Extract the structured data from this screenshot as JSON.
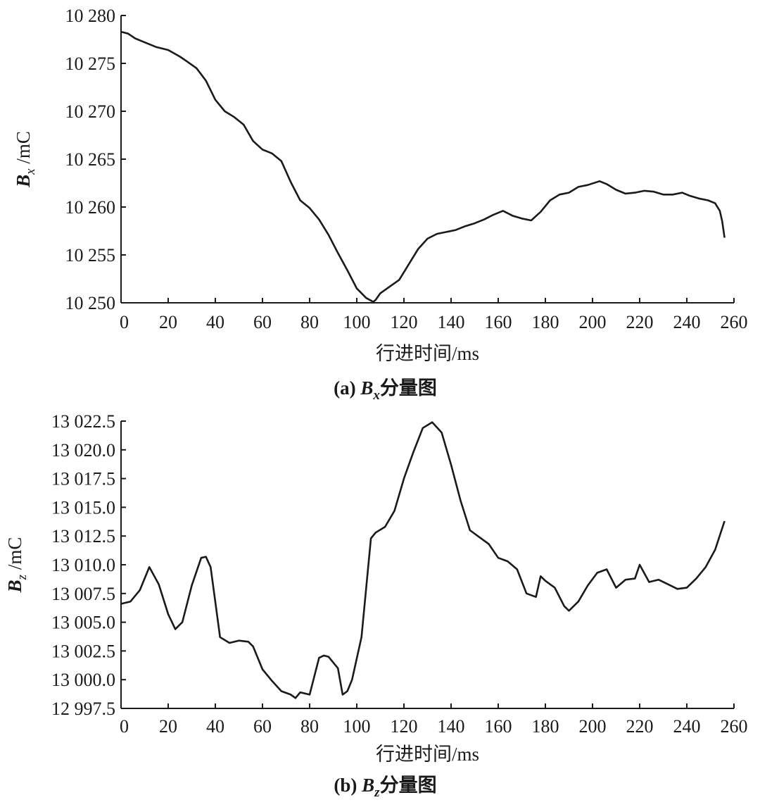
{
  "chart_data": [
    {
      "type": "line",
      "panel": "a",
      "caption_prefix": "(a) ",
      "caption_symbol": "B",
      "caption_subscript": "x",
      "caption_suffix": "分量图",
      "ylabel_symbol": "B",
      "ylabel_subscript": "x",
      "ylabel_unit": " /mC",
      "xlabel": "行进时间/ms",
      "xlim": [
        0,
        260
      ],
      "ylim": [
        10250,
        10280
      ],
      "xticks": [
        0,
        20,
        40,
        60,
        80,
        100,
        120,
        140,
        160,
        180,
        200,
        220,
        240,
        260
      ],
      "xtick_labels": [
        "0",
        "20",
        "40",
        "60",
        "80",
        "100",
        "120",
        "140",
        "160",
        "180",
        "200",
        "220",
        "240",
        "260"
      ],
      "yticks": [
        10250,
        10255,
        10260,
        10265,
        10270,
        10275,
        10280
      ],
      "ytick_labels": [
        "10 250",
        "10 255",
        "10 260",
        "10 265",
        "10 270",
        "10 275",
        "10 280"
      ],
      "series": [
        {
          "x": [
            0,
            3,
            6,
            10,
            15,
            20,
            25,
            28,
            32,
            36,
            40,
            44,
            48,
            52,
            56,
            60,
            64,
            68,
            72,
            76,
            80,
            84,
            88,
            92,
            96,
            100,
            104,
            107,
            108,
            110,
            114,
            118,
            122,
            126,
            130,
            134,
            138,
            142,
            146,
            150,
            154,
            158,
            162,
            166,
            170,
            174,
            178,
            182,
            186,
            190,
            194,
            198,
            203,
            206,
            210,
            214,
            218,
            222,
            226,
            230,
            234,
            238,
            241,
            245,
            249,
            252,
            254,
            255,
            256
          ],
          "y": [
            10278.3,
            10278.1,
            10277.6,
            10277.2,
            10276.7,
            10276.4,
            10275.7,
            10275.2,
            10274.5,
            10273.2,
            10271.2,
            10270.0,
            10269.4,
            10268.6,
            10266.9,
            10266.0,
            10265.6,
            10264.8,
            10262.6,
            10260.7,
            10259.9,
            10258.7,
            10257.1,
            10255.2,
            10253.4,
            10251.5,
            10250.5,
            10250.1,
            10250.3,
            10251.0,
            10251.7,
            10252.4,
            10254.0,
            10255.6,
            10256.7,
            10257.2,
            10257.4,
            10257.6,
            10258.0,
            10258.3,
            10258.7,
            10259.2,
            10259.6,
            10259.1,
            10258.8,
            10258.6,
            10259.5,
            10260.7,
            10261.3,
            10261.5,
            10262.1,
            10262.3,
            10262.7,
            10262.4,
            10261.8,
            10261.4,
            10261.5,
            10261.7,
            10261.6,
            10261.3,
            10261.3,
            10261.5,
            10261.2,
            10260.9,
            10260.7,
            10260.4,
            10259.6,
            10258.5,
            10256.8
          ]
        }
      ]
    },
    {
      "type": "line",
      "panel": "b",
      "caption_prefix": "(b) ",
      "caption_symbol": "B",
      "caption_subscript": "z",
      "caption_suffix": "分量图",
      "ylabel_symbol": "B",
      "ylabel_subscript": "z",
      "ylabel_unit": " /mC",
      "xlabel": "行进时间/ms",
      "xlim": [
        0,
        260
      ],
      "ylim": [
        12997.5,
        13022.5
      ],
      "xticks": [
        0,
        20,
        40,
        60,
        80,
        100,
        120,
        140,
        160,
        180,
        200,
        220,
        240,
        260
      ],
      "xtick_labels": [
        "0",
        "20",
        "40",
        "60",
        "80",
        "100",
        "120",
        "140",
        "160",
        "180",
        "200",
        "220",
        "240",
        "260"
      ],
      "yticks": [
        12997.5,
        13000.0,
        13002.5,
        13005.0,
        13007.5,
        13010.0,
        13012.5,
        13015.0,
        13017.5,
        13020.0,
        13022.5
      ],
      "ytick_labels": [
        "12 997.5",
        "13 000.0",
        "13 002.5",
        "13 005.0",
        "13 007.5",
        "13 010.0",
        "13 012.5",
        "13 015.0",
        "13 017.5",
        "13 020.0",
        "13 022.5"
      ],
      "series": [
        {
          "x": [
            0,
            4,
            8,
            12,
            16,
            20,
            23,
            26,
            30,
            34,
            36,
            38,
            42,
            46,
            50,
            54,
            56,
            60,
            64,
            68,
            72,
            74,
            76,
            80,
            84,
            86,
            88,
            92,
            94,
            96,
            98,
            102,
            106,
            108,
            112,
            116,
            120,
            124,
            128,
            132,
            136,
            140,
            144,
            148,
            152,
            156,
            160,
            164,
            168,
            172,
            176,
            178,
            180,
            184,
            188,
            190,
            194,
            198,
            202,
            206,
            210,
            214,
            218,
            220,
            224,
            228,
            232,
            236,
            240,
            244,
            248,
            252,
            256
          ],
          "y": [
            13006.6,
            13006.8,
            13007.8,
            13009.8,
            13008.3,
            13005.7,
            13004.4,
            13005.0,
            13008.2,
            13010.6,
            13010.7,
            13009.8,
            13003.7,
            13003.2,
            13003.4,
            13003.3,
            13002.9,
            13000.9,
            12999.9,
            12999.0,
            12998.7,
            12998.4,
            12998.9,
            12998.7,
            13001.9,
            13002.1,
            13002.0,
            13001.0,
            12998.7,
            12999.0,
            13000.0,
            13003.7,
            13012.3,
            13012.8,
            13013.3,
            13014.7,
            13017.5,
            13019.8,
            13021.9,
            13022.4,
            13021.5,
            13018.7,
            13015.6,
            13013.0,
            13012.4,
            13011.8,
            13010.6,
            13010.3,
            13009.6,
            13007.5,
            13007.2,
            13009.0,
            13008.6,
            13008.0,
            13006.4,
            13006.0,
            13006.8,
            13008.2,
            13009.3,
            13009.6,
            13008.0,
            13008.7,
            13008.8,
            13010.0,
            13008.5,
            13008.7,
            13008.3,
            13007.9,
            13008.0,
            13008.8,
            13009.8,
            13011.3,
            13013.8
          ]
        }
      ]
    }
  ]
}
